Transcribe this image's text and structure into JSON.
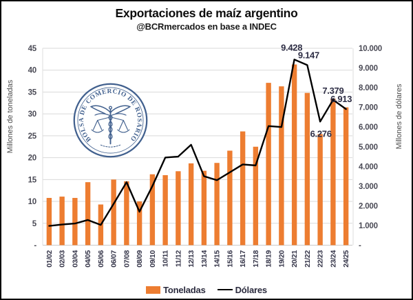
{
  "title": "Exportaciones de maíz argentino",
  "subtitle": "@BCRmercados en base a INDEC",
  "logo": {
    "ring_text": "BOLSA DE COMERCIO DE ROSARIO"
  },
  "chart_data": {
    "type": "combo-bar-line",
    "categories": [
      "01/02",
      "02/03",
      "03/04",
      "04/05",
      "05/06",
      "06/07",
      "07/08",
      "08/09",
      "09/10",
      "10/11",
      "11/12",
      "12/13",
      "13/14",
      "14/15",
      "15/16",
      "16/17",
      "17/18",
      "18/19",
      "19/20",
      "20/21",
      "21/22",
      "22/23",
      "23/24",
      "24/25"
    ],
    "series": [
      {
        "name": "Toneladas",
        "type": "bar",
        "axis": "left",
        "color": "#ED7D31",
        "values": [
          10.8,
          11.1,
          10.8,
          14.4,
          9.3,
          15.0,
          14.6,
          10.0,
          16.2,
          16.0,
          16.9,
          18.7,
          17.0,
          18.8,
          21.6,
          26.0,
          22.5,
          37.1,
          36.3,
          41.3,
          34.8,
          25.4,
          33.5,
          31.5
        ]
      },
      {
        "name": "Dólares",
        "type": "line",
        "axis": "right",
        "color": "#000000",
        "values": [
          980,
          1050,
          1100,
          1280,
          1030,
          2100,
          3200,
          1700,
          3000,
          4450,
          4500,
          5100,
          3500,
          3300,
          3700,
          4100,
          4050,
          6050,
          6000,
          9428,
          9147,
          6276,
          7379,
          6913
        ],
        "point_labels": [
          "",
          "",
          "",
          "",
          "",
          "",
          "",
          "",
          "",
          "",
          "",
          "",
          "",
          "",
          "",
          "",
          "",
          "",
          "",
          "9.428",
          "9.147",
          "6.276",
          "7.379",
          "6.913"
        ]
      }
    ],
    "left_axis": {
      "title": "Millones de toneladas",
      "min": 0,
      "max": 45,
      "tick_step": 5,
      "tick_labels": [
        "45",
        "40",
        "35",
        "30",
        "25",
        "20",
        "15",
        "10",
        "5",
        "-"
      ]
    },
    "right_axis": {
      "title": "Millones de dólares",
      "min": 0,
      "max": 10000,
      "tick_step": 1000,
      "tick_labels": [
        "10.000",
        "9.000",
        "8.000",
        "7.000",
        "6.000",
        "5.000",
        "4.000",
        "3.000",
        "2.000",
        "1.000",
        "-"
      ]
    },
    "grid": true,
    "legend_position": "bottom"
  }
}
